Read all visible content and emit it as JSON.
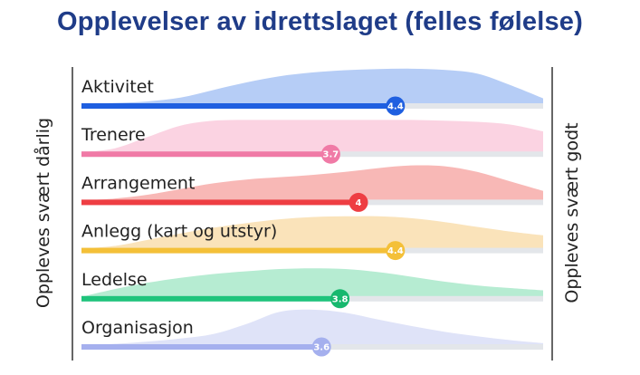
{
  "chart_data": {
    "type": "bar",
    "title": "Opplevelser av idrettslaget (felles følelse)",
    "left_label": "Oppleves svært dårlig",
    "right_label": "Oppleves svært godt",
    "xlim": [
      1,
      6
    ],
    "categories": [
      "Aktivitet",
      "Trenere",
      "Arrangement",
      "Anlegg (kart og utstyr)",
      "Ledelse",
      "Organisasjon"
    ],
    "values": [
      4.4,
      3.7,
      4,
      4.4,
      3.8,
      3.6
    ],
    "value_labels": [
      "4.4",
      "3.7",
      "4",
      "4.4",
      "3.8",
      "3.6"
    ],
    "distributions": [
      [
        0.05,
        0.08,
        0.12,
        0.22,
        0.42,
        0.62,
        0.78,
        0.88,
        0.94,
        0.97,
        0.98,
        0.95,
        0.85,
        0.55,
        0.2
      ],
      [
        0.05,
        0.15,
        0.45,
        0.75,
        0.88,
        0.9,
        0.9,
        0.9,
        0.9,
        0.9,
        0.9,
        0.88,
        0.85,
        0.78,
        0.6
      ],
      [
        0.05,
        0.1,
        0.2,
        0.35,
        0.5,
        0.6,
        0.66,
        0.72,
        0.8,
        0.9,
        0.97,
        0.95,
        0.8,
        0.55,
        0.3
      ],
      [
        0.05,
        0.12,
        0.28,
        0.45,
        0.6,
        0.72,
        0.82,
        0.88,
        0.9,
        0.9,
        0.85,
        0.75,
        0.62,
        0.5,
        0.4
      ],
      [
        0.05,
        0.25,
        0.42,
        0.55,
        0.65,
        0.72,
        0.78,
        0.8,
        0.78,
        0.7,
        0.58,
        0.45,
        0.35,
        0.28,
        0.22
      ],
      [
        0.03,
        0.08,
        0.14,
        0.22,
        0.34,
        0.6,
        0.92,
        0.98,
        0.9,
        0.72,
        0.55,
        0.4,
        0.28,
        0.18,
        0.1
      ]
    ],
    "colors": {
      "bars": [
        "#1f5fe0",
        "#f07aa6",
        "#ee3e43",
        "#f4c038",
        "#1fc47c",
        "#a5b0ee"
      ],
      "areas": [
        "#b6cdf6",
        "#fbd3e2",
        "#f8b8b6",
        "#fae3ba",
        "#b6ecd2",
        "#dfe3f8"
      ],
      "dots": [
        "#1f5fe0",
        "#f07aa6",
        "#ee3e43",
        "#f4c038",
        "#17b86e",
        "#a5b0ee"
      ],
      "track": "#e3e6ea",
      "axis": "#333333",
      "title": "#1f3c88"
    }
  }
}
